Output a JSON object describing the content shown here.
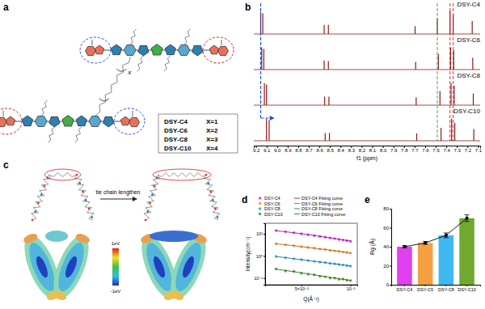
{
  "panel_labels": [
    "a",
    "b",
    "c",
    "d",
    "e"
  ],
  "structure": {
    "legend": [
      {
        "name": "DSY-C4",
        "x": "X=1"
      },
      {
        "name": "DSY-C6",
        "x": "X=2"
      },
      {
        "name": "DSY-C8",
        "x": "X=3"
      },
      {
        "name": "DSY-C10",
        "x": "X=4"
      }
    ],
    "repeat_label": "x"
  },
  "esp": {
    "arrow_label": "tie chain lengthen",
    "colorbar_labels": [
      "1eV",
      "-1eV"
    ]
  },
  "chart_data": [
    {
      "type": "spectrum",
      "xlabel": "f1 (ppm)",
      "tick_labels": "x",
      "xlim": [
        9.22,
        7.08
      ],
      "xticks": [
        9.2,
        9.1,
        {
          "value": 9,
          "label": "9.0"
        },
        8.9,
        8.8,
        8.7,
        8.6,
        8.5,
        8.4,
        8.3,
        8.2,
        8.1,
        {
          "value": 8,
          "label": "8.0"
        },
        7.9,
        7.8,
        7.7,
        7.6,
        7.5,
        7.4,
        7.3,
        7.2,
        7.1
      ],
      "series": [
        {
          "name": "DSY-C4",
          "color": "#8b1a1a",
          "x": [
            9.155,
            9.135,
            8.555,
            8.515,
            7.695,
            7.485,
            7.365,
            7.335,
            7.155
          ],
          "values": [
            0.85,
            0.8,
            0.35,
            0.35,
            0.3,
            0.6,
            0.9,
            0.75,
            0.5
          ]
        },
        {
          "name": "DSY-C6",
          "color": "#8b1a1a",
          "x": [
            9.145,
            9.125,
            8.555,
            8.515,
            7.69,
            7.475,
            7.36,
            7.33,
            7.15
          ],
          "values": [
            0.85,
            0.8,
            0.35,
            0.33,
            0.3,
            0.6,
            0.85,
            0.75,
            0.45
          ]
        },
        {
          "name": "DSY-C8",
          "color": "#8b1a1a",
          "x": [
            9.12,
            9.1,
            8.55,
            8.51,
            7.685,
            7.46,
            7.355,
            7.325,
            7.145
          ],
          "values": [
            0.85,
            0.8,
            0.33,
            0.33,
            0.3,
            0.55,
            0.85,
            0.75,
            0.45
          ]
        },
        {
          "name": "DSY-C10",
          "color": "#8b1a1a",
          "x": [
            9.1,
            9.075,
            8.545,
            8.505,
            7.68,
            7.45,
            7.35,
            7.32,
            7.14
          ],
          "values": [
            0.85,
            0.8,
            0.3,
            0.3,
            0.28,
            0.5,
            0.85,
            0.7,
            0.45
          ]
        }
      ]
    },
    {
      "type": "scatter",
      "log": true,
      "legend": "top",
      "xlabel": "Q(Å⁻¹)",
      "ylabel": "Intensity(cm⁻¹)",
      "xlim": [
        0.03,
        0.11
      ],
      "ylim": [
        0.05,
        30
      ],
      "xticks": [
        {
          "value": 0.05,
          "label": "5×10⁻²"
        },
        {
          "value": 0.1,
          "label": "10⁻¹"
        }
      ],
      "yticks": [
        {
          "value": 0.1,
          "label": "10⁻¹"
        },
        {
          "value": 1,
          "label": "10⁰"
        },
        {
          "value": 10,
          "label": "10¹"
        }
      ],
      "x": [
        0.035,
        0.04,
        0.045,
        0.05,
        0.055,
        0.06,
        0.065,
        0.07,
        0.075,
        0.08,
        0.085,
        0.09,
        0.095,
        0.1
      ],
      "series": [
        {
          "name": "DSY-C4",
          "color": "#e040e0",
          "marker": "circle",
          "values": [
            14,
            12.5,
            11.2,
            10,
            9.1,
            8.3,
            7.6,
            7.0,
            6.5,
            6.1,
            5.6,
            5.3,
            4.9,
            4.6
          ]
        },
        {
          "name": "DSY-C6",
          "color": "#f0a040",
          "marker": "circle",
          "values": [
            3.6,
            3.2,
            2.9,
            2.6,
            2.4,
            2.25,
            2.05,
            1.95,
            1.8,
            1.7,
            1.6,
            1.5,
            1.42,
            1.35
          ]
        },
        {
          "name": "DSY-C8",
          "color": "#40b0e0",
          "marker": "circle",
          "values": [
            0.95,
            0.83,
            0.75,
            0.68,
            0.62,
            0.57,
            0.53,
            0.5,
            0.46,
            0.44,
            0.41,
            0.39,
            0.37,
            0.35
          ]
        },
        {
          "name": "DSY-C10",
          "color": "#60a040",
          "marker": "circle",
          "values": [
            0.26,
            0.21,
            0.2,
            0.165,
            0.15,
            0.14,
            0.12,
            0.115,
            0.1,
            0.1,
            0.088,
            0.09,
            0.08,
            0.077
          ]
        },
        {
          "name": "DSY-C4 Fitting curve",
          "type": "line",
          "line_style": "solid",
          "color": "#9a1a9a",
          "values": [
            13.8,
            12.4,
            11.1,
            10.1,
            9.2,
            8.4,
            7.7,
            7.1,
            6.6,
            6.1,
            5.7,
            5.3,
            5.0,
            4.7
          ]
        },
        {
          "name": "DSY-C6 Fitting curve",
          "type": "line",
          "line_style": "solid",
          "color": "#b06010",
          "values": [
            3.55,
            3.2,
            2.88,
            2.63,
            2.42,
            2.24,
            2.08,
            1.95,
            1.83,
            1.72,
            1.62,
            1.53,
            1.45,
            1.38
          ]
        },
        {
          "name": "DSY-C8 Fitting curve",
          "type": "line",
          "line_style": "solid",
          "color": "#1a70a0",
          "values": [
            0.94,
            0.84,
            0.75,
            0.68,
            0.62,
            0.575,
            0.535,
            0.5,
            0.465,
            0.44,
            0.415,
            0.39,
            0.37,
            0.35
          ]
        },
        {
          "name": "DSY-C10 Fitting curve",
          "type": "line",
          "line_style": "solid",
          "color": "#307020",
          "values": [
            0.25,
            0.22,
            0.195,
            0.172,
            0.155,
            0.14,
            0.128,
            0.117,
            0.108,
            0.1,
            0.094,
            0.088,
            0.083,
            0.078
          ]
        }
      ]
    },
    {
      "type": "bar",
      "ylabel": "Rg (Å)",
      "categories": [
        "DSY-C4",
        "DSY-C6",
        "DSY-C8",
        "DSY-C10"
      ],
      "values": [
        40,
        44,
        52,
        70
      ],
      "errors": [
        1.2,
        1.5,
        2.5,
        3.5
      ],
      "colors": [
        "#e040f0",
        "#f5a040",
        "#40b8f0",
        "#70a830"
      ],
      "ylim": [
        0,
        80
      ],
      "yticks": [
        0,
        20,
        40,
        60,
        80
      ],
      "marker": "square",
      "line_style": "solid"
    }
  ]
}
